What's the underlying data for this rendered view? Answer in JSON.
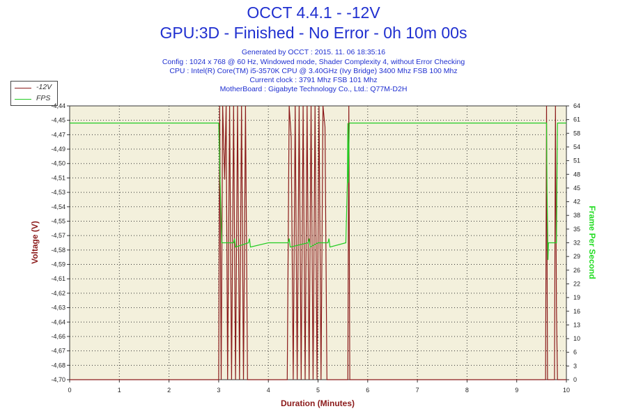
{
  "header": {
    "title": "OCCT 4.4.1 - -12V",
    "subtitle": "GPU:3D - Finished - No Error - 0h 10m 00s",
    "info_lines": [
      "Generated by OCCT : 2015. 11. 06 18:35:16",
      "Config : 1024 x 768 @ 60 Hz, Windowed mode, Shader Complexity 4, without Error Checking",
      "CPU : Intel(R) Core(TM) i5-3570K CPU @ 3.40GHz (Ivy Bridge) 3400 Mhz FSB 100 Mhz",
      "Current clock : 3791 Mhz FSB 101 Mhz",
      "MotherBoard : Gigabyte Technology Co., Ltd.: Q77M-D2H"
    ]
  },
  "colors": {
    "voltage": "#8b1a1a",
    "fps": "#22cc22",
    "plot_bg": "#f3f0dc",
    "title": "#1f2fd0"
  },
  "chart_data": {
    "type": "line",
    "xlabel": "Duration (Minutes)",
    "ylabel_left": "Voltage (V)",
    "ylabel_right": "Frame Per Second",
    "xlim": [
      0,
      10
    ],
    "ylim_left": [
      -4.7,
      -4.44
    ],
    "ylim_right": [
      0,
      64
    ],
    "x_ticks": [
      "0",
      "1",
      "2",
      "3",
      "4",
      "5",
      "6",
      "7",
      "8",
      "9",
      "10"
    ],
    "y_ticks_left": [
      "-4,44",
      "-4,45",
      "-4,47",
      "-4,49",
      "-4,50",
      "-4,51",
      "-4,53",
      "-4,54",
      "-4,55",
      "-4,57",
      "-4,58",
      "-4,59",
      "-4,61",
      "-4,62",
      "-4,63",
      "-4,64",
      "-4,66",
      "-4,67",
      "-4,68",
      "-4,70"
    ],
    "y_ticks_right": [
      "64",
      "61",
      "58",
      "54",
      "51",
      "48",
      "45",
      "42",
      "38",
      "35",
      "32",
      "29",
      "26",
      "22",
      "19",
      "16",
      "13",
      "10",
      "6",
      "3",
      "0"
    ],
    "grid": true,
    "legend": "top-left",
    "series": [
      {
        "name": "-12V",
        "axis": "left",
        "x": [
          0,
          3.0,
          3.02,
          3.05,
          3.08,
          3.12,
          3.15,
          3.18,
          3.22,
          3.26,
          3.3,
          3.34,
          3.38,
          3.42,
          3.46,
          3.5,
          3.54,
          3.58,
          4.38,
          4.42,
          4.46,
          4.5,
          4.54,
          4.58,
          4.62,
          4.66,
          4.7,
          4.74,
          4.78,
          4.82,
          4.86,
          4.9,
          4.94,
          4.98,
          5.02,
          5.06,
          5.1,
          5.14,
          5.18,
          5.22,
          5.6,
          5.62,
          5.64,
          9.58,
          9.6,
          9.62,
          9.64,
          9.76,
          9.78,
          9.8,
          9.82,
          9.85,
          10.0
        ],
        "y": [
          -4.7,
          -4.7,
          -4.44,
          -4.7,
          -4.44,
          -4.51,
          -4.44,
          -4.7,
          -4.44,
          -4.7,
          -4.44,
          -4.7,
          -4.44,
          -4.7,
          -4.44,
          -4.7,
          -4.44,
          -4.7,
          -4.7,
          -4.44,
          -4.47,
          -4.7,
          -4.44,
          -4.7,
          -4.44,
          -4.7,
          -4.44,
          -4.7,
          -4.44,
          -4.7,
          -4.44,
          -4.7,
          -4.44,
          -4.7,
          -4.44,
          -4.7,
          -4.44,
          -4.46,
          -4.7,
          -4.7,
          -4.7,
          -4.44,
          -4.7,
          -4.7,
          -4.44,
          -4.7,
          -4.7,
          -4.7,
          -4.44,
          -4.63,
          -4.7,
          -4.7,
          -4.7
        ]
      },
      {
        "name": "FPS",
        "axis": "right",
        "x": [
          0,
          3.0,
          3.03,
          3.06,
          3.1,
          3.3,
          3.32,
          3.34,
          3.6,
          3.62,
          3.64,
          4.0,
          4.4,
          4.42,
          4.44,
          4.8,
          4.82,
          4.84,
          5.0,
          5.2,
          5.22,
          5.24,
          5.56,
          5.59,
          5.6,
          5.61,
          5.63,
          5.66,
          5.7,
          9.6,
          9.61,
          9.63,
          9.64,
          9.66,
          9.8,
          9.82,
          9.84,
          10.0
        ],
        "y": [
          60,
          60,
          46,
          32,
          32,
          32,
          33,
          31,
          32,
          33,
          31,
          32,
          32,
          33,
          31,
          32,
          33,
          31,
          32,
          32,
          33,
          31,
          32,
          46,
          60,
          46,
          60,
          60,
          60,
          60,
          44,
          28,
          32,
          32,
          32,
          60,
          60,
          60
        ]
      }
    ]
  }
}
